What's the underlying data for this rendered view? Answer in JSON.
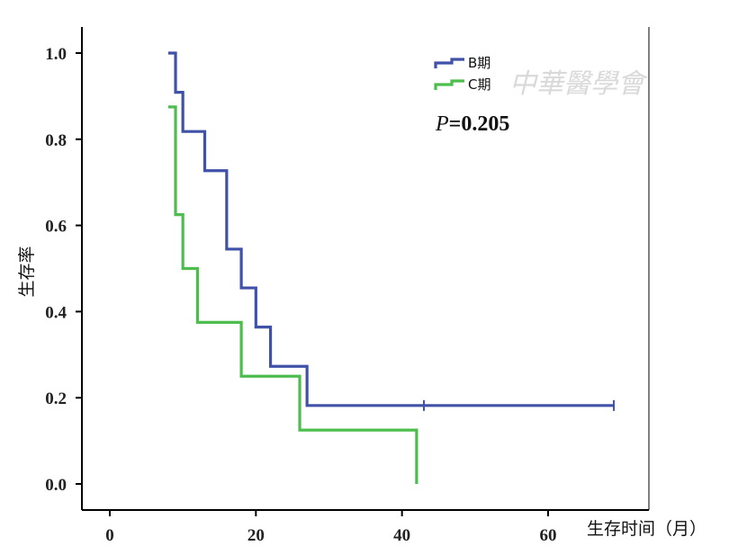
{
  "chart_data": {
    "type": "line",
    "step": true,
    "xlabel": "生存时间（月）",
    "ylabel": "生存率",
    "xlim": [
      -4,
      74
    ],
    "ylim": [
      -0.06,
      1.06
    ],
    "xticks": [
      0,
      20,
      40,
      60
    ],
    "yticks": [
      0.0,
      0.2,
      0.4,
      0.6,
      0.8,
      1.0
    ],
    "xtick_labels": [
      "0",
      "20",
      "40",
      "60"
    ],
    "ytick_labels": [
      "0.0",
      "0.2",
      "0.4",
      "0.6",
      "0.8",
      "1.0"
    ],
    "legend_position": "top-right",
    "annotation": {
      "prefix": "P",
      "text": "=0.205"
    },
    "series": [
      {
        "name": "B期",
        "color": "#4052a8",
        "x": [
          8,
          9,
          10,
          13,
          16,
          18,
          20,
          22,
          27,
          43,
          69
        ],
        "y": [
          1.0,
          0.909,
          0.818,
          0.727,
          0.545,
          0.455,
          0.364,
          0.273,
          0.182,
          0.182,
          0.182
        ],
        "censored_x": [
          43,
          69
        ]
      },
      {
        "name": "C期",
        "color": "#4dbd4d",
        "x": [
          8,
          9,
          10,
          12,
          18,
          26,
          42
        ],
        "y": [
          0.875,
          0.625,
          0.5,
          0.375,
          0.25,
          0.125,
          0.0
        ],
        "censored_x": []
      }
    ]
  },
  "watermark": "中華醫學會"
}
